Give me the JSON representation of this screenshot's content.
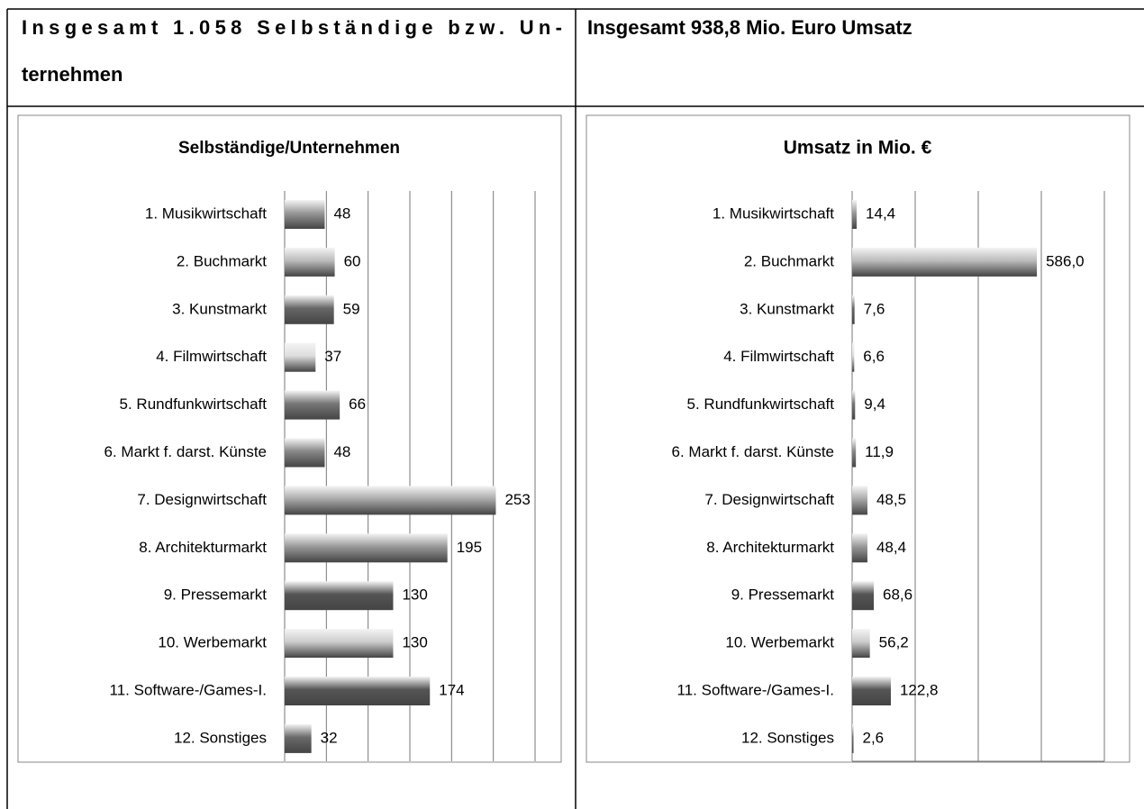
{
  "header": [
    [
      "Insgesamt 1.058 Selbständige bzw. Un-",
      "ternehmen"
    ],
    "Insgesamt 938,8 Mio. Euro Umsatz"
  ],
  "chart_data": [
    {
      "type": "barh",
      "title": "Selbständige/Unternehmen",
      "categories": [
        "1. Musikwirtschaft",
        "2. Buchmarkt",
        "3. Kunstmarkt",
        "4. Filmwirtschaft",
        "5. Rundfunkwirtschaft",
        "6. Markt f. darst. Künste",
        "7. Designwirtschaft",
        "8. Architekturmarkt",
        "9. Pressemarkt",
        "10. Werbemarkt",
        "11. Software-/Games-I.",
        "12. Sonstiges"
      ],
      "values": [
        48,
        60,
        59,
        37,
        66,
        48,
        253,
        195,
        130,
        130,
        174,
        32
      ],
      "colors": [
        "#999999",
        "#bbbbbb",
        "#666666",
        "#dddddd",
        "#777777",
        "#888888",
        "#aaaaaa",
        "#999999",
        "#555555",
        "#cccccc",
        "#555555",
        "#6a6a6a"
      ],
      "xlim": [
        0,
        300
      ],
      "xticks": [
        0,
        50,
        100,
        150,
        200,
        250,
        300
      ],
      "grid": true
    },
    {
      "type": "barh",
      "title": "Umsatz in Mio. €",
      "categories": [
        "1. Musikwirtschaft",
        "2. Buchmarkt",
        "3. Kunstmarkt",
        "4. Filmwirtschaft",
        "5. Rundfunkwirtschaft",
        "6. Markt f. darst. Künste",
        "7. Designwirtschaft",
        "8. Architekturmarkt",
        "9. Pressemarkt",
        "10. Werbemarkt",
        "11. Software-/Games-I.",
        "12. Sonstiges"
      ],
      "values": [
        14.4,
        586.0,
        7.6,
        6.6,
        9.4,
        11.9,
        48.5,
        48.4,
        68.6,
        56.2,
        122.8,
        2.6
      ],
      "value_labels": [
        "14,4",
        "586,0",
        "7,6",
        "6,6",
        "9,4",
        "11,9",
        "48,5",
        "48,4",
        "68,6",
        "56,2",
        "122,8",
        "2,6"
      ],
      "colors": [
        "#999999",
        "#bbbbbb",
        "#666666",
        "#dddddd",
        "#777777",
        "#888888",
        "#aaaaaa",
        "#999999",
        "#555555",
        "#cccccc",
        "#555555",
        "#6a6a6a"
      ],
      "xlim": [
        0,
        800
      ],
      "xticks": [
        0,
        200,
        400,
        600,
        800
      ],
      "grid": true
    }
  ]
}
